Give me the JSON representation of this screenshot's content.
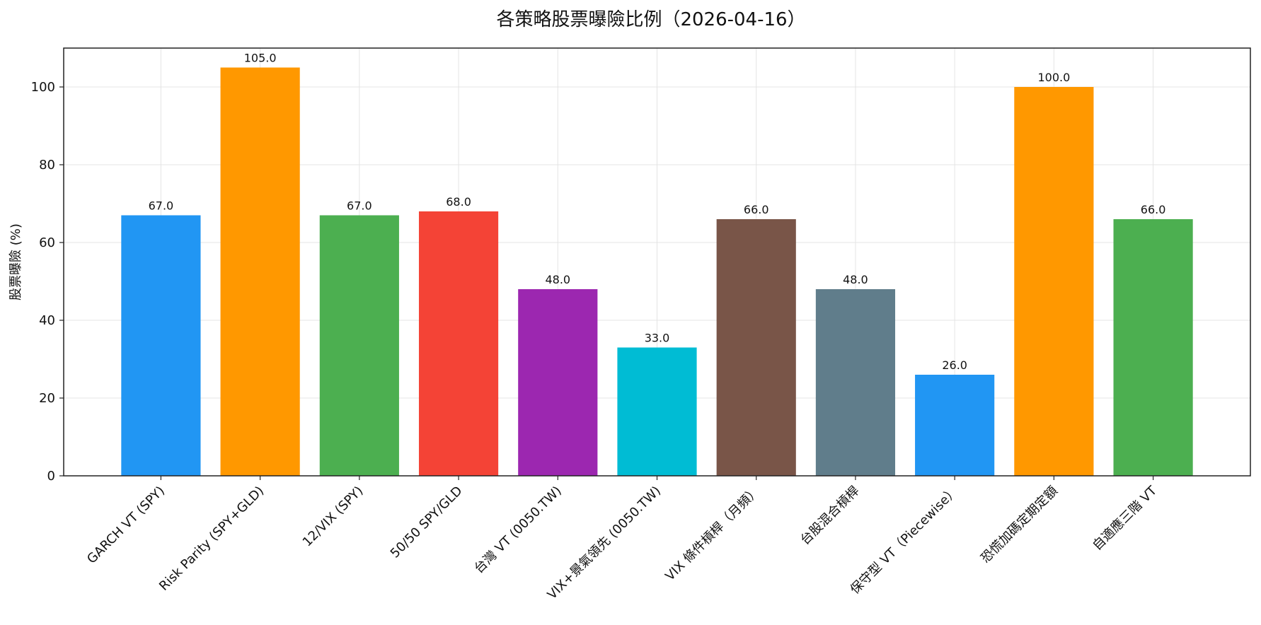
{
  "chart_data": {
    "type": "bar",
    "title": "各策略股票曝險比例（2026-04-16）",
    "xlabel": "",
    "ylabel": "股票曝險 (%)",
    "ylim": [
      0,
      110
    ],
    "yticks": [
      0,
      20,
      40,
      60,
      80,
      100
    ],
    "grid": true,
    "categories": [
      "GARCH VT (SPY)",
      "Risk Parity (SPY+GLD)",
      "12/VIX (SPY)",
      "50/50 SPY/GLD",
      "台灣 VT (0050.TW)",
      "VIX+景氣領先 (0050.TW)",
      "VIX 條件槓桿（月頻）",
      "台股混合槓桿",
      "保守型 VT（Piecewise）",
      "恐慌加碼定期定額",
      "自適應三階 VT"
    ],
    "values": [
      67.0,
      105.0,
      67.0,
      68.0,
      48.0,
      33.0,
      66.0,
      48.0,
      26.0,
      100.0,
      66.0
    ],
    "value_labels": [
      "67.0",
      "105.0",
      "67.0",
      "68.0",
      "48.0",
      "33.0",
      "66.0",
      "48.0",
      "26.0",
      "100.0",
      "66.0"
    ],
    "colors": [
      "#2196F3",
      "#FF9800",
      "#4CAF50",
      "#F44336",
      "#9C27B0",
      "#00BCD4",
      "#795548",
      "#607D8B",
      "#2196F3",
      "#FF9800",
      "#4CAF50"
    ]
  }
}
